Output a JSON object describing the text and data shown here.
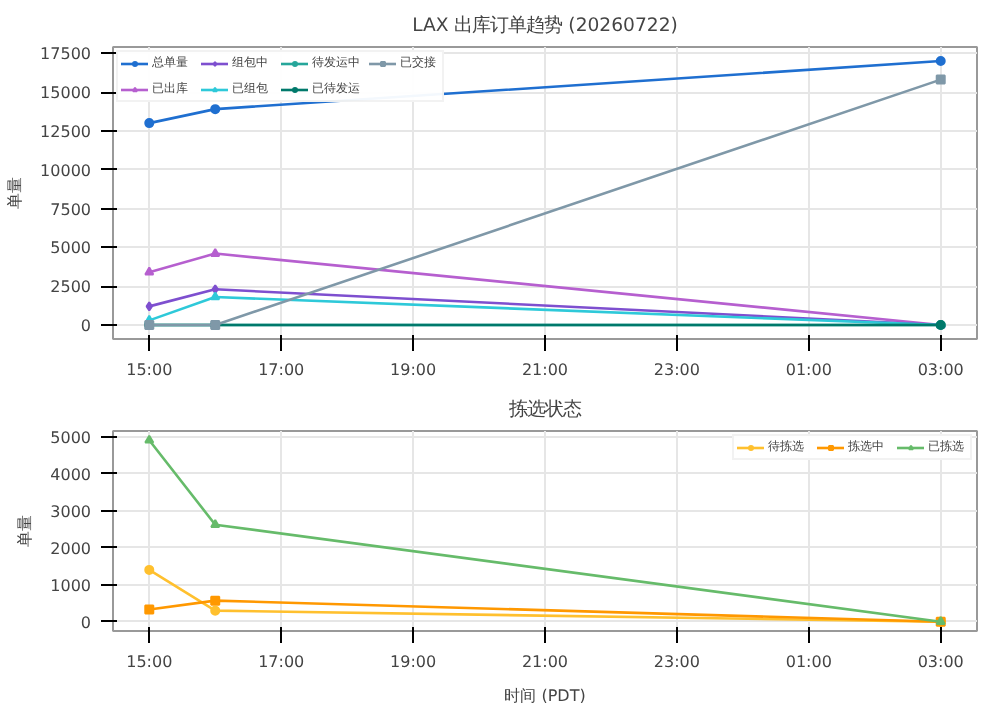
{
  "chart_data": [
    {
      "type": "line",
      "title": "LAX 出库订单趋势 (20260722)",
      "ylabel": "单量",
      "x": [
        "2026-07-22T15:00",
        "2026-07-22T16:00",
        "2026-07-23T03:00"
      ],
      "xlim": [
        "2026-07-22T14:27",
        "2026-07-23T03:33"
      ],
      "xticks": [
        {
          "value": "2026-07-22T15:00",
          "label": "15:00"
        },
        {
          "value": "2026-07-22T17:00",
          "label": "17:00"
        },
        {
          "value": "2026-07-22T19:00",
          "label": "19:00"
        },
        {
          "value": "2026-07-22T21:00",
          "label": "21:00"
        },
        {
          "value": "2026-07-22T23:00",
          "label": "23:00"
        },
        {
          "value": "2026-07-23T01:00",
          "label": "01:00"
        },
        {
          "value": "2026-07-23T03:00",
          "label": "03:00"
        }
      ],
      "ylim": [
        -900,
        17900
      ],
      "yticks": [
        0,
        2500,
        5000,
        7500,
        10000,
        12500,
        15000,
        17500
      ],
      "grid": true,
      "legend": "top left",
      "series": [
        {
          "name": "总单量",
          "color": "#1f6fd0",
          "marker": "circle",
          "values": [
            13000,
            13900,
            17000
          ]
        },
        {
          "name": "已出库",
          "color": "#b65fcf",
          "marker": "triangle",
          "values": [
            3400,
            4600,
            0
          ]
        },
        {
          "name": "组包中",
          "color": "#7e4fcf",
          "marker": "diamond",
          "values": [
            1200,
            2300,
            0
          ]
        },
        {
          "name": "已组包",
          "color": "#2ec9d9",
          "marker": "triangle",
          "values": [
            300,
            1800,
            0
          ]
        },
        {
          "name": "待发运中",
          "color": "#26a69a",
          "marker": "circle",
          "values": [
            0,
            0,
            0
          ]
        },
        {
          "name": "已待发运",
          "color": "#00796b",
          "marker": "circle",
          "values": [
            0,
            0,
            0
          ]
        },
        {
          "name": "已交接",
          "color": "#7f98a8",
          "marker": "square",
          "values": [
            0,
            0,
            15800
          ]
        }
      ]
    },
    {
      "type": "line",
      "title": "拣选状态",
      "xlabel": "时间 (PDT)",
      "ylabel": "单量",
      "x": [
        "2026-07-22T15:00",
        "2026-07-22T16:00",
        "2026-07-23T03:00"
      ],
      "xlim": [
        "2026-07-22T14:27",
        "2026-07-23T03:33"
      ],
      "xticks": [
        {
          "value": "2026-07-22T15:00",
          "label": "15:00"
        },
        {
          "value": "2026-07-22T17:00",
          "label": "17:00"
        },
        {
          "value": "2026-07-22T19:00",
          "label": "19:00"
        },
        {
          "value": "2026-07-22T21:00",
          "label": "21:00"
        },
        {
          "value": "2026-07-22T23:00",
          "label": "23:00"
        },
        {
          "value": "2026-07-23T01:00",
          "label": "01:00"
        },
        {
          "value": "2026-07-23T03:00",
          "label": "03:00"
        }
      ],
      "ylim": [
        -250,
        5150
      ],
      "yticks": [
        0,
        1000,
        2000,
        3000,
        4000,
        5000
      ],
      "grid": true,
      "legend": "top right",
      "series": [
        {
          "name": "待拣选",
          "color": "#ffc02e",
          "marker": "circle",
          "values": [
            1400,
            300,
            0
          ]
        },
        {
          "name": "拣选中",
          "color": "#ff9800",
          "marker": "square",
          "values": [
            330,
            570,
            0
          ]
        },
        {
          "name": "已拣选",
          "color": "#66bb6a",
          "marker": "triangle",
          "values": [
            4900,
            2620,
            0
          ]
        }
      ]
    }
  ]
}
